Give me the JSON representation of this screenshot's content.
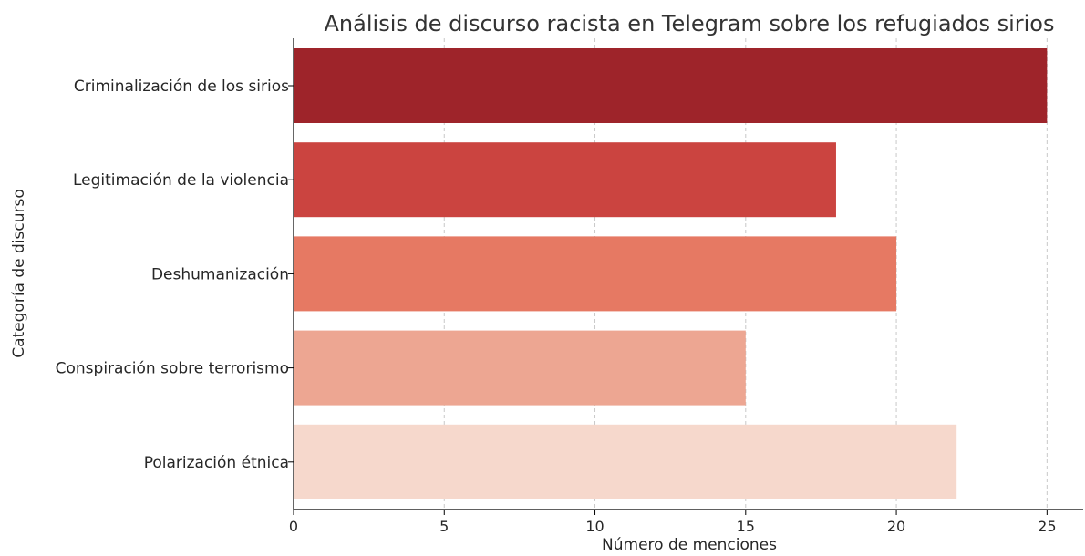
{
  "chart_data": {
    "type": "bar",
    "orientation": "horizontal",
    "title": "Análisis de discurso racista en Telegram sobre los refugiados sirios",
    "xlabel": "Número de menciones",
    "ylabel": "Categoría de discurso",
    "categories": [
      "Criminalización de los sirios",
      "Legitimación de la violencia",
      "Deshumanización",
      "Conspiración sobre terrorismo",
      "Polarización étnica"
    ],
    "values": [
      25,
      18,
      20,
      15,
      22
    ],
    "colors": [
      "#9e242a",
      "#cb4440",
      "#e67963",
      "#eda692",
      "#f6d8cc"
    ],
    "xlim": [
      0,
      26.2
    ],
    "xticks": [
      0,
      5,
      10,
      15,
      20,
      25
    ],
    "grid": "vertical dashed",
    "legend": "none"
  }
}
